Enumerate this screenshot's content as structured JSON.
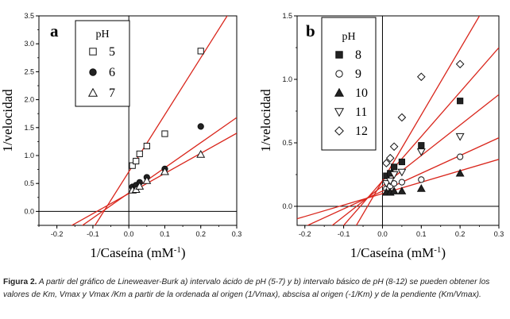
{
  "chart_data": [
    {
      "type": "scatter",
      "panel_label": "a",
      "xlabel": "1/Caseína (mM",
      "xlabel_sup": "-1",
      "xlabel_end": ")",
      "ylabel": "1/velocidad",
      "xlim": [
        -0.25,
        0.3
      ],
      "ylim": [
        -0.25,
        3.5
      ],
      "xticks": [
        "-0.2",
        "-0.1",
        "0.0",
        "0.1",
        "0.2",
        "0.3"
      ],
      "xtick_values": [
        -0.2,
        -0.1,
        0.0,
        0.1,
        0.2,
        0.3
      ],
      "yticks": [
        "0.0",
        "0.5",
        "1.0",
        "1.5",
        "2.0",
        "2.5",
        "3.0",
        "3.5"
      ],
      "ytick_values": [
        0.0,
        0.5,
        1.0,
        1.5,
        2.0,
        2.5,
        3.0,
        3.5
      ],
      "legend_title": "pH",
      "line_color": "#d9261c",
      "series": [
        {
          "name": "5",
          "marker": "square-open",
          "x": [
            0.01,
            0.02,
            0.03,
            0.05,
            0.1,
            0.2
          ],
          "y": [
            0.82,
            0.9,
            1.03,
            1.17,
            1.39,
            2.87
          ],
          "fit": {
            "slope": 10.2,
            "intercept": 0.71
          }
        },
        {
          "name": "6",
          "marker": "circle-filled",
          "x": [
            0.01,
            0.02,
            0.03,
            0.05,
            0.1,
            0.2
          ],
          "y": [
            0.44,
            0.47,
            0.52,
            0.61,
            0.76,
            1.52
          ],
          "fit": {
            "slope": 4.5,
            "intercept": 0.33
          }
        },
        {
          "name": "7",
          "marker": "triangle-open",
          "x": [
            0.01,
            0.02,
            0.03,
            0.05,
            0.1,
            0.2
          ],
          "y": [
            0.38,
            0.39,
            0.45,
            0.55,
            0.71,
            1.02
          ],
          "fit": {
            "slope": 3.6,
            "intercept": 0.32
          }
        }
      ]
    },
    {
      "type": "scatter",
      "panel_label": "b",
      "xlabel": "1/Caseína (mM",
      "xlabel_sup": "-1",
      "xlabel_end": ")",
      "ylabel": "1/velocidad",
      "xlim": [
        -0.22,
        0.3
      ],
      "ylim": [
        -0.15,
        1.5
      ],
      "xticks": [
        "-0.2",
        "-0.1",
        "0.0",
        "0.1",
        "0.2",
        "0.3"
      ],
      "xtick_values": [
        -0.2,
        -0.1,
        0.0,
        0.1,
        0.2,
        0.3
      ],
      "yticks": [
        "0.0",
        "0.5",
        "1.0",
        "1.5"
      ],
      "ytick_values": [
        0.0,
        0.5,
        1.0,
        1.5
      ],
      "legend_title": "pH",
      "line_color": "#d9261c",
      "series": [
        {
          "name": "8",
          "marker": "square-filled",
          "x": [
            0.01,
            0.02,
            0.03,
            0.05,
            0.1,
            0.2
          ],
          "y": [
            0.24,
            0.26,
            0.31,
            0.35,
            0.48,
            0.83
          ],
          "fit": {
            "slope": 3.5,
            "intercept": 0.2
          }
        },
        {
          "name": "9",
          "marker": "circle-open",
          "x": [
            0.01,
            0.02,
            0.03,
            0.05,
            0.1,
            0.2
          ],
          "y": [
            0.14,
            0.16,
            0.18,
            0.19,
            0.21,
            0.39
          ],
          "fit": {
            "slope": 1.4,
            "intercept": 0.12
          }
        },
        {
          "name": "10",
          "marker": "triangle-filled",
          "x": [
            0.01,
            0.02,
            0.03,
            0.05,
            0.1,
            0.2
          ],
          "y": [
            0.11,
            0.11,
            0.12,
            0.12,
            0.14,
            0.26
          ],
          "fit": {
            "slope": 0.9,
            "intercept": 0.1
          }
        },
        {
          "name": "11",
          "marker": "triangle-down-open",
          "x": [
            0.01,
            0.02,
            0.03,
            0.05,
            0.1,
            0.2
          ],
          "y": [
            0.18,
            0.2,
            0.25,
            0.27,
            0.43,
            0.55
          ],
          "fit": {
            "slope": 2.4,
            "intercept": 0.16
          }
        },
        {
          "name": "12",
          "marker": "diamond-open",
          "x": [
            0.01,
            0.02,
            0.03,
            0.05,
            0.1,
            0.2
          ],
          "y": [
            0.34,
            0.38,
            0.47,
            0.7,
            1.02,
            1.12
          ],
          "fit": {
            "slope": 5.2,
            "intercept": 0.2
          }
        }
      ]
    }
  ],
  "caption": {
    "label": "Figura 2.",
    "text": "A partir del gráfico de  Lineweaver-Burk a) intervalo ácido de pH  (5-7) y  b) intervalo básico de pH (8-12) se pueden obtener los valores de K",
    "text_full": "A partir del gráfico de  Lineweaver-Burk a) intervalo ácido de pH  (5-7) y  b) intervalo básico de pH (8-12) se pueden obtener los valores de Km, Vmax y Vmax /Km a partir de la ordenada al origen (1/Vmax), abscisa al origen (-1/Km) y de la pendiente (Km/Vmax)."
  }
}
